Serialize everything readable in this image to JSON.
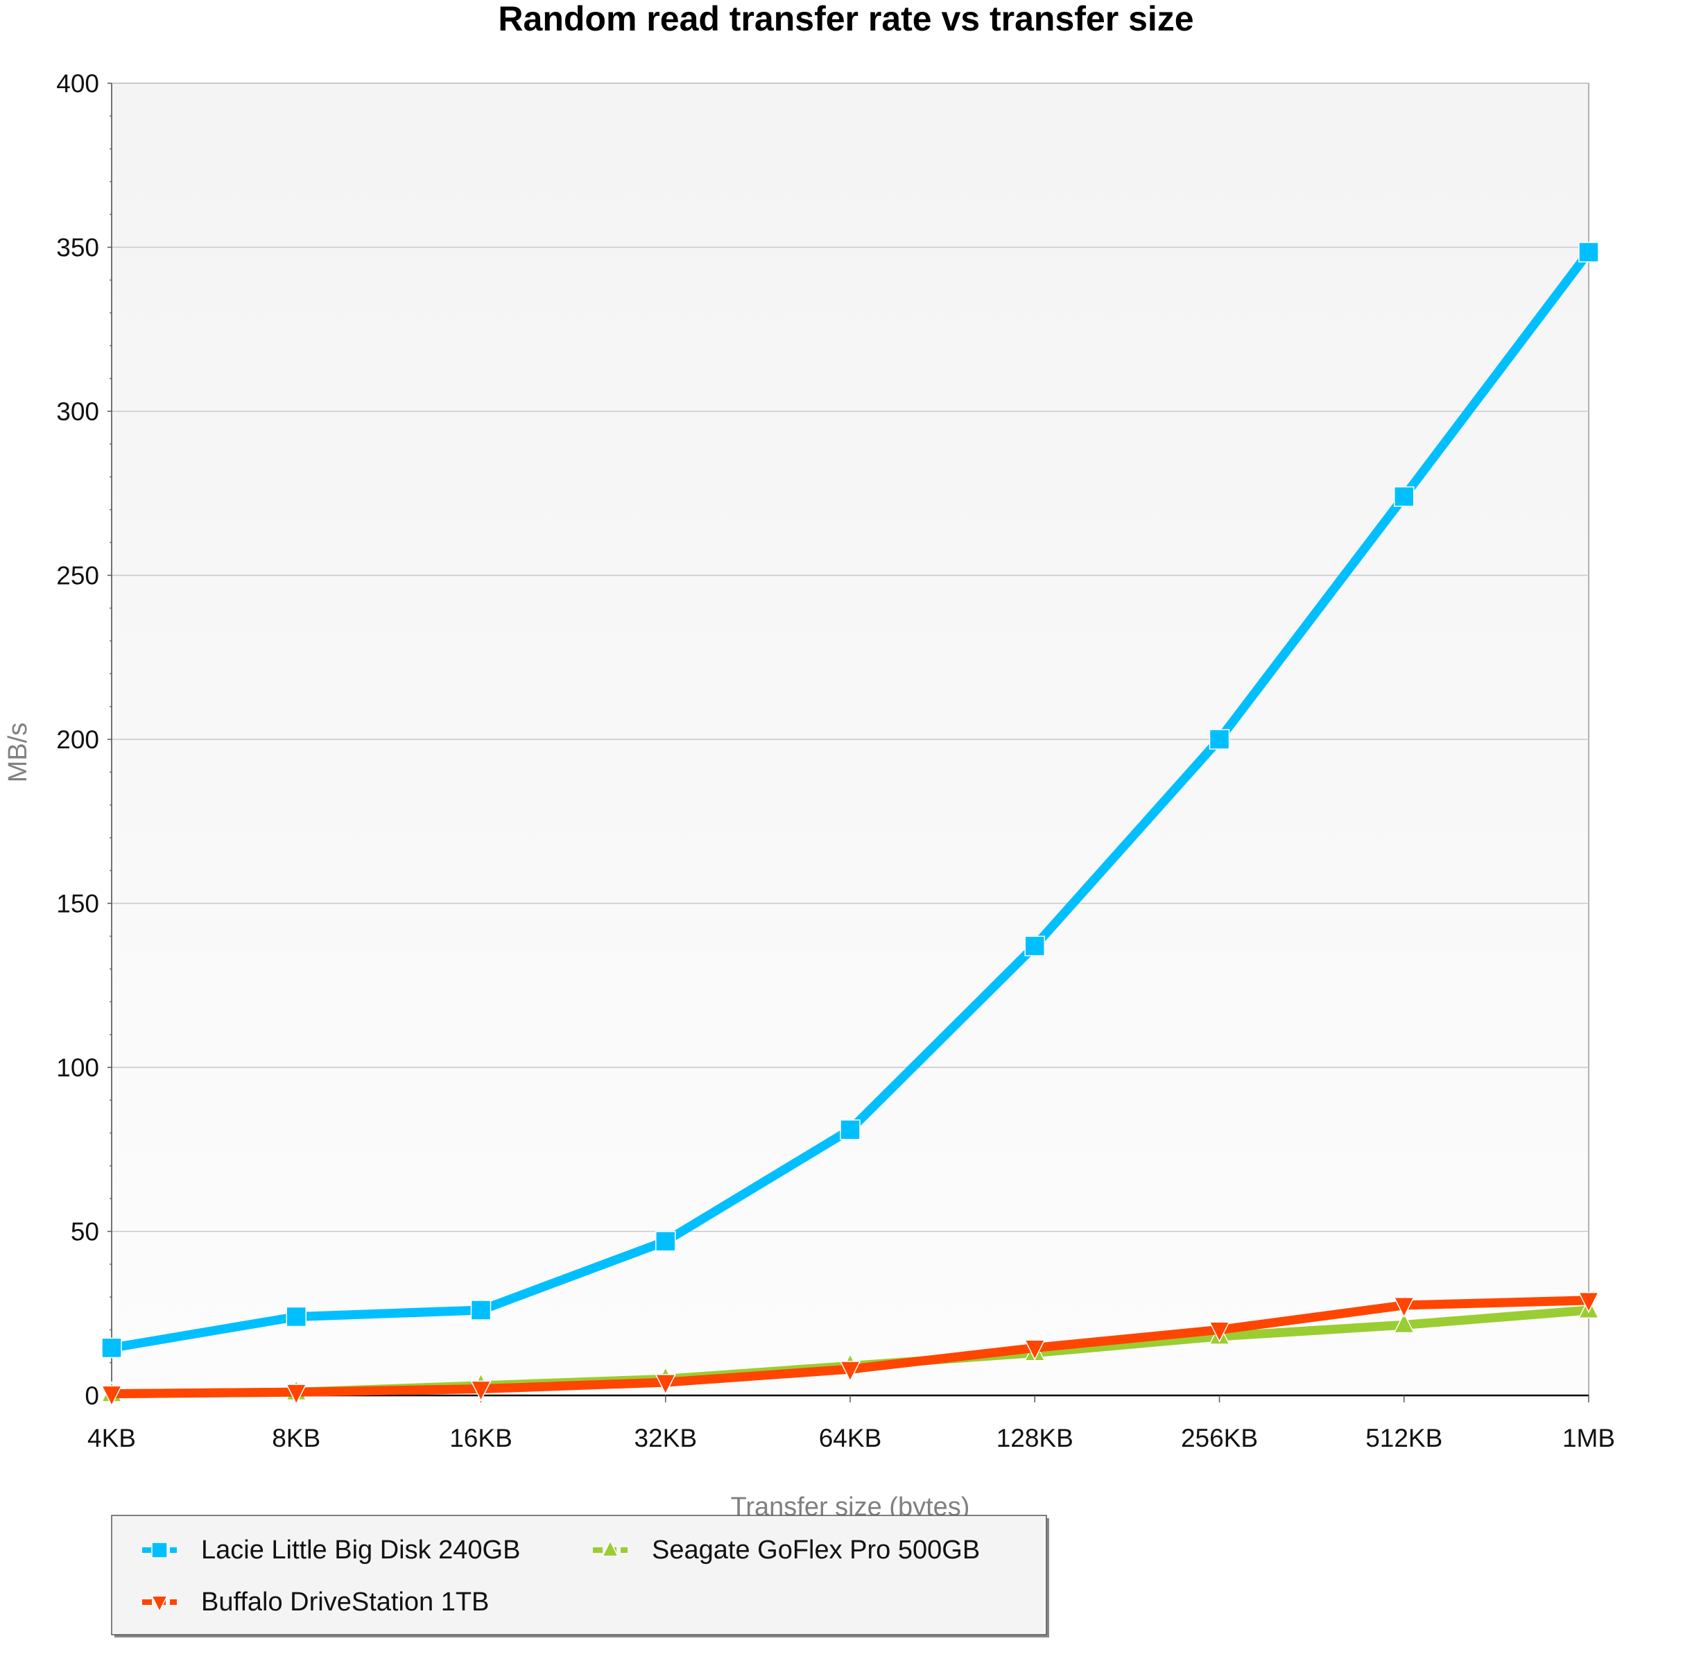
{
  "chart_data": {
    "type": "line",
    "title": "Random read transfer rate vs transfer size",
    "xlabel": "Transfer size (bytes)",
    "ylabel": "MB/s",
    "categories": [
      "4KB",
      "8KB",
      "16KB",
      "32KB",
      "64KB",
      "128KB",
      "256KB",
      "512KB",
      "1MB"
    ],
    "ylim": [
      0,
      400
    ],
    "yticks": [
      0,
      50,
      100,
      150,
      200,
      250,
      300,
      350,
      400
    ],
    "grid": true,
    "legend_position": "bottom-left",
    "series": [
      {
        "name": "Lacie Little Big Disk 240GB",
        "color": "#00bfff",
        "marker": "square",
        "values": [
          14.5,
          24,
          26,
          47,
          81,
          137,
          200,
          274,
          348.5
        ]
      },
      {
        "name": "Seagate GoFlex Pro 500GB",
        "color": "#9acd32",
        "marker": "triangle-up",
        "values": [
          0.5,
          1,
          3,
          5,
          9,
          13,
          18,
          21.5,
          26
        ]
      },
      {
        "name": "Buffalo DriveStation 1TB",
        "color": "#ff4500",
        "marker": "triangle-down",
        "values": [
          0.5,
          1,
          2,
          4,
          8,
          14.5,
          20,
          27.5,
          29
        ]
      }
    ]
  }
}
